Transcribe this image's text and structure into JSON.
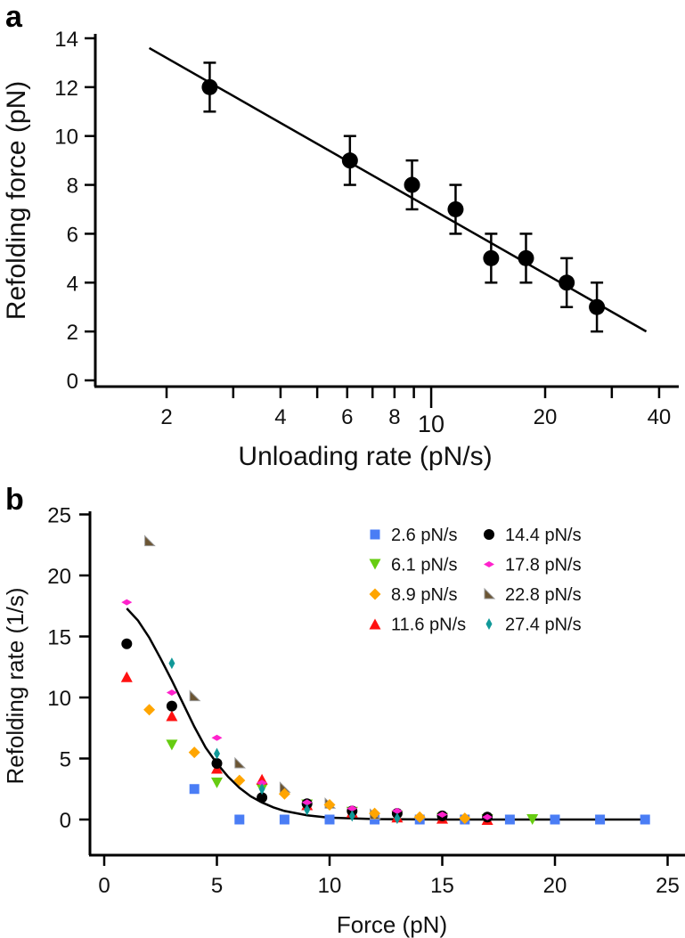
{
  "chart_data": [
    {
      "type": "scatter",
      "panel_label": "a",
      "xlabel": "Unloading rate (pN/s)",
      "ylabel": "Refolding force (pN)",
      "xscale": "log",
      "xlim": [
        1.6,
        42
      ],
      "ylim": [
        0,
        14
      ],
      "xticks": [
        2,
        4,
        6,
        8,
        10,
        20,
        40
      ],
      "xminor": [
        3,
        5,
        7,
        9,
        30
      ],
      "yticks": [
        0,
        2,
        4,
        6,
        8,
        10,
        12,
        14
      ],
      "points": {
        "x": [
          2.6,
          6.1,
          8.9,
          11.6,
          14.4,
          17.8,
          22.8,
          27.4
        ],
        "y": [
          12,
          9,
          8,
          7,
          5,
          5,
          4,
          3
        ],
        "yerr": [
          1,
          1,
          1,
          1,
          1,
          1,
          1,
          1
        ]
      },
      "fit_line": {
        "x": [
          1.8,
          37
        ],
        "y": [
          13.6,
          2.0
        ]
      }
    },
    {
      "type": "scatter",
      "panel_label": "b",
      "xlabel": "Force (pN)",
      "ylabel": "Refolding rate (1/s)",
      "xlim": [
        0,
        25
      ],
      "ylim": [
        -2.5,
        25
      ],
      "xticks": [
        0,
        5,
        10,
        15,
        20,
        25
      ],
      "yticks": [
        0,
        5,
        10,
        15,
        20,
        25
      ],
      "legend_position": "top-right",
      "series": [
        {
          "name": "2.6 pN/s",
          "color": "#4a7df5",
          "marker": "square",
          "x": [
            4,
            6,
            8,
            10,
            12,
            14,
            16,
            18,
            20,
            22,
            24
          ],
          "y": [
            2.5,
            0,
            0,
            0,
            0,
            0,
            0,
            0,
            0,
            0,
            0
          ]
        },
        {
          "name": "6.1 pN/s",
          "color": "#66cc11",
          "marker": "triangle-down",
          "x": [
            3,
            5,
            7,
            9,
            11,
            13,
            15,
            17,
            19
          ],
          "y": [
            6.1,
            3.0,
            2.5,
            1.2,
            0.6,
            0.3,
            0.1,
            0,
            0
          ]
        },
        {
          "name": "8.9 pN/s",
          "color": "#ffa500",
          "marker": "diamond",
          "x": [
            2,
            4,
            6,
            8,
            10,
            12,
            14,
            16
          ],
          "y": [
            9.0,
            5.5,
            3.2,
            2.1,
            1.2,
            0.5,
            0.2,
            0.1
          ]
        },
        {
          "name": "11.6 pN/s",
          "color": "#ff1111",
          "marker": "triangle-up",
          "x": [
            1,
            3,
            5,
            7,
            9,
            11,
            13,
            15,
            17
          ],
          "y": [
            11.7,
            8.5,
            4.2,
            3.3,
            1.2,
            0.6,
            0.2,
            0.1,
            0
          ]
        },
        {
          "name": "14.4 pN/s",
          "color": "#000000",
          "marker": "circle",
          "x": [
            1,
            3,
            5,
            7,
            9,
            11,
            13,
            15,
            17
          ],
          "y": [
            14.4,
            9.3,
            4.6,
            1.8,
            1.3,
            0.7,
            0.5,
            0.3,
            0.2
          ]
        },
        {
          "name": "17.8 pN/s",
          "color": "#ff22cc",
          "marker": "flat-diamond",
          "x": [
            1,
            3,
            5,
            7,
            9,
            11,
            13,
            15,
            17
          ],
          "y": [
            17.8,
            10.4,
            6.7,
            3.0,
            1.4,
            0.9,
            0.7,
            0.4,
            0.2
          ]
        },
        {
          "name": "22.8 pN/s",
          "color": "#6b5533",
          "marker": "wedge",
          "x": [
            2,
            4,
            6,
            8,
            10,
            12
          ],
          "y": [
            22.8,
            10.1,
            4.6,
            2.6,
            1.3,
            0.4
          ]
        },
        {
          "name": "27.4 pN/s",
          "color": "#119999",
          "marker": "tall-diamond",
          "x": [
            3,
            5,
            7,
            9,
            11,
            13
          ],
          "y": [
            12.8,
            5.4,
            2.5,
            0.8,
            0.3,
            0.1
          ]
        }
      ],
      "fit_curve": {
        "x": [
          1,
          1.5,
          2,
          2.5,
          3,
          3.5,
          4,
          4.5,
          5,
          5.5,
          6,
          6.5,
          7,
          7.5,
          8,
          9,
          10,
          12,
          15,
          20,
          24
        ],
        "y": [
          17.3,
          16.3,
          14.9,
          13.2,
          11.4,
          9.5,
          7.6,
          5.9,
          4.6,
          3.5,
          2.6,
          1.9,
          1.4,
          1.0,
          0.7,
          0.35,
          0.15,
          0.04,
          0,
          0,
          0
        ]
      }
    }
  ]
}
